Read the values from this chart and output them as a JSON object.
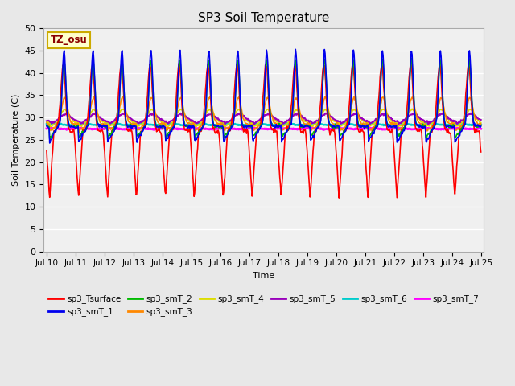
{
  "title": "SP3 Soil Temperature",
  "xlabel": "Time",
  "ylabel": "Soil Temperature (C)",
  "annotation": "TZ_osu",
  "annotation_color": "#8B0000",
  "annotation_bg": "#FFFFCC",
  "annotation_border": "#CCAA00",
  "ylim": [
    0,
    50
  ],
  "yticks": [
    0,
    5,
    10,
    15,
    20,
    25,
    30,
    35,
    40,
    45,
    50
  ],
  "xtick_labels": [
    "Jul 10",
    "Jul 11",
    "Jul 12",
    "Jul 13",
    "Jul 14",
    "Jul 15",
    "Jul 16",
    "Jul 17",
    "Jul 18",
    "Jul 19",
    "Jul 20",
    "Jul 21",
    "Jul 22",
    "Jul 23",
    "Jul 24",
    "Jul 25"
  ],
  "n_days": 15,
  "bg_color": "#E8E8E8",
  "plot_bg_color": "#F0F0F0",
  "grid_color": "#FFFFFF",
  "series": {
    "sp3_Tsurface": {
      "color": "#FF0000",
      "lw": 1.2
    },
    "sp3_smT_1": {
      "color": "#0000EE",
      "lw": 1.2
    },
    "sp3_smT_2": {
      "color": "#00BB00",
      "lw": 1.2
    },
    "sp3_smT_3": {
      "color": "#FF8800",
      "lw": 1.2
    },
    "sp3_smT_4": {
      "color": "#DDDD00",
      "lw": 1.2
    },
    "sp3_smT_5": {
      "color": "#9900BB",
      "lw": 1.5
    },
    "sp3_smT_6": {
      "color": "#00CCCC",
      "lw": 1.8
    },
    "sp3_smT_7": {
      "color": "#FF00FF",
      "lw": 2.0
    }
  },
  "legend_order": [
    "sp3_Tsurface",
    "sp3_smT_1",
    "sp3_smT_2",
    "sp3_smT_3",
    "sp3_smT_4",
    "sp3_smT_5",
    "sp3_smT_6",
    "sp3_smT_7"
  ]
}
